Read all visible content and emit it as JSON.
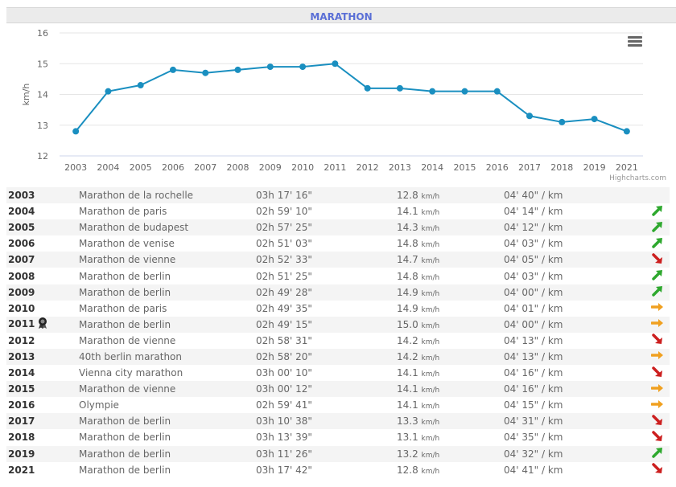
{
  "header": {
    "title": "MARATHON"
  },
  "chart_data": {
    "type": "line",
    "title": "",
    "xlabel": "",
    "ylabel": "km/h",
    "ylim": [
      12,
      16
    ],
    "yticks": [
      12,
      13,
      14,
      15,
      16
    ],
    "grid": true,
    "legend": "none",
    "categories": [
      "2003",
      "2004",
      "2005",
      "2006",
      "2007",
      "2008",
      "2009",
      "2010",
      "2011",
      "2012",
      "2013",
      "2014",
      "2015",
      "2016",
      "2017",
      "2018",
      "2019",
      "2021"
    ],
    "series": [
      {
        "values": [
          12.8,
          14.1,
          14.3,
          14.8,
          14.7,
          14.8,
          14.9,
          14.9,
          15.0,
          14.2,
          14.2,
          14.1,
          14.1,
          14.1,
          13.3,
          13.1,
          13.2,
          12.8
        ],
        "color": "#1a8fc0"
      }
    ],
    "credits": "Highcharts.com"
  },
  "table": {
    "speed_unit": "km/h",
    "rows": [
      {
        "year": "2003",
        "name": "Marathon de la rochelle",
        "time": "03h 17' 16\"",
        "speed": "12.8",
        "pace": "04' 40\" / km",
        "trend": ""
      },
      {
        "year": "2004",
        "name": "Marathon de paris",
        "time": "02h 59' 10\"",
        "speed": "14.1",
        "pace": "04' 14\" / km",
        "trend": "up"
      },
      {
        "year": "2005",
        "name": "Marathon de budapest",
        "time": "02h 57' 25\"",
        "speed": "14.3",
        "pace": "04' 12\" / km",
        "trend": "up"
      },
      {
        "year": "2006",
        "name": "Marathon de venise",
        "time": "02h 51' 03\"",
        "speed": "14.8",
        "pace": "04' 03\" / km",
        "trend": "up"
      },
      {
        "year": "2007",
        "name": "Marathon de vienne",
        "time": "02h 52' 33\"",
        "speed": "14.7",
        "pace": "04' 05\" / km",
        "trend": "down"
      },
      {
        "year": "2008",
        "name": "Marathon de berlin",
        "time": "02h 51' 25\"",
        "speed": "14.8",
        "pace": "04' 03\" / km",
        "trend": "up"
      },
      {
        "year": "2009",
        "name": "Marathon de berlin",
        "time": "02h 49' 28\"",
        "speed": "14.9",
        "pace": "04' 00\" / km",
        "trend": "up"
      },
      {
        "year": "2010",
        "name": "Marathon de paris",
        "time": "02h 49' 35\"",
        "speed": "14.9",
        "pace": "04' 01\" / km",
        "trend": "flat"
      },
      {
        "year": "2011",
        "name": "Marathon de berlin",
        "time": "02h 49' 15\"",
        "speed": "15.0",
        "pace": "04' 00\" / km",
        "trend": "flat",
        "medal": true
      },
      {
        "year": "2012",
        "name": "Marathon de vienne",
        "time": "02h 58' 31\"",
        "speed": "14.2",
        "pace": "04' 13\" / km",
        "trend": "down"
      },
      {
        "year": "2013",
        "name": "40th berlin marathon",
        "time": "02h 58' 20\"",
        "speed": "14.2",
        "pace": "04' 13\" / km",
        "trend": "flat"
      },
      {
        "year": "2014",
        "name": "Vienna city marathon",
        "time": "03h 00' 10\"",
        "speed": "14.1",
        "pace": "04' 16\" / km",
        "trend": "down"
      },
      {
        "year": "2015",
        "name": "Marathon de vienne",
        "time": "03h 00' 12\"",
        "speed": "14.1",
        "pace": "04' 16\" / km",
        "trend": "flat"
      },
      {
        "year": "2016",
        "name": "Olympie",
        "time": "02h 59' 41\"",
        "speed": "14.1",
        "pace": "04' 15\" / km",
        "trend": "flat"
      },
      {
        "year": "2017",
        "name": "Marathon de berlin",
        "time": "03h 10' 38\"",
        "speed": "13.3",
        "pace": "04' 31\" / km",
        "trend": "down"
      },
      {
        "year": "2018",
        "name": "Marathon de berlin",
        "time": "03h 13' 39\"",
        "speed": "13.1",
        "pace": "04' 35\" / km",
        "trend": "down"
      },
      {
        "year": "2019",
        "name": "Marathon de berlin",
        "time": "03h 11' 26\"",
        "speed": "13.2",
        "pace": "04' 32\" / km",
        "trend": "up"
      },
      {
        "year": "2021",
        "name": "Marathon de berlin",
        "time": "03h 17' 42\"",
        "speed": "12.8",
        "pace": "04' 41\" / km",
        "trend": "down"
      }
    ]
  },
  "colors": {
    "up": "#2ea82e",
    "down": "#cc1f1f",
    "flat": "#f0a020",
    "line": "#1a8fc0"
  },
  "icons": {
    "menu": "hamburger-menu-icon",
    "medal": "medal-icon"
  }
}
